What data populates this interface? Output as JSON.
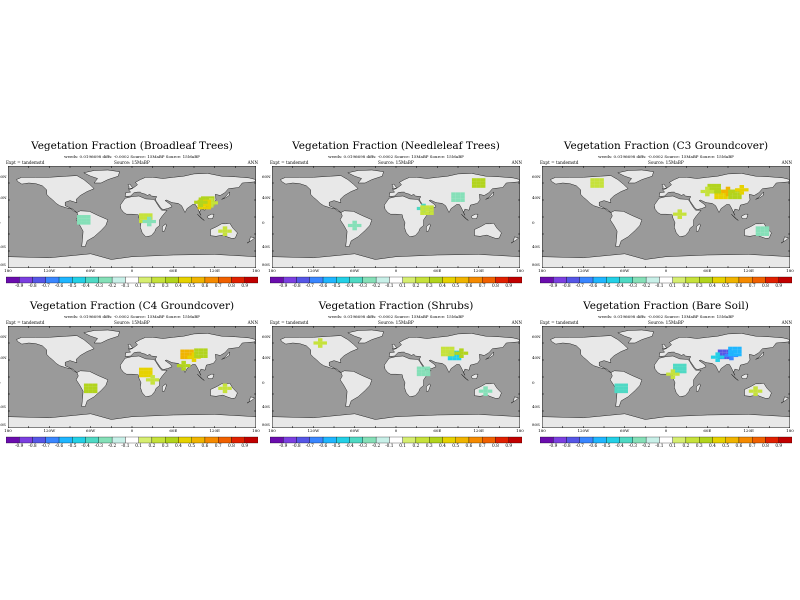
{
  "common": {
    "stats_line": "weeds: 0.0196698  diffs: -0.0002    Source:  15MaBP    Source:  15MaBP",
    "expt_label": "Expt = tandemstd",
    "source_label": "Source:  15MaBP",
    "period": "ANN",
    "lon_ticks": [
      "180",
      "120W",
      "60W",
      "0",
      "60E",
      "120E",
      "180"
    ],
    "lat_ticks": [
      "60N",
      "40N",
      "0",
      "40S",
      "80S"
    ],
    "colorbar_levels": [
      "-0.9",
      "-0.8",
      "-0.7",
      "-0.6",
      "-0.5",
      "-0.4",
      "-0.3",
      "-0.2",
      "-0.1",
      "0.1",
      "0.2",
      "0.3",
      "0.4",
      "0.5",
      "0.6",
      "0.7",
      "0.8",
      "0.9"
    ],
    "colors": {
      "ocean": "#9a9a9a",
      "land": "#e8e8e8",
      "palette": [
        "#6a0dad",
        "#7b3fe0",
        "#5656e6",
        "#3a86ff",
        "#1fb6ff",
        "#23d0e6",
        "#4fd9c4",
        "#85e0b8",
        "#c8f0e8",
        "#ffffff",
        "#d6ee70",
        "#c6e23b",
        "#b2d41d",
        "#e6d200",
        "#f0b400",
        "#f58a00",
        "#f06000",
        "#e02000",
        "#c00000"
      ]
    }
  },
  "panels": [
    {
      "id": "broadleaf",
      "title": "Vegetation Fraction (Broadleaf Trees)"
    },
    {
      "id": "needleleaf",
      "title": "Vegetation Fraction (Needleleaf Trees)"
    },
    {
      "id": "c3",
      "title": "Vegetation Fraction (C3 Groundcover)"
    },
    {
      "id": "c4",
      "title": "Vegetation Fraction (C4 Groundcover)"
    },
    {
      "id": "shrubs",
      "title": "Vegetation Fraction (Shrubs)"
    },
    {
      "id": "baresoil",
      "title": "Vegetation Fraction (Bare Soil)"
    }
  ],
  "chart_data": [
    {
      "type": "heatmap",
      "title": "Vegetation Fraction (Broadleaf Trees)",
      "projection": "cylindrical",
      "xlim": [
        -180,
        180
      ],
      "ylim": [
        -90,
        90
      ],
      "color_range": [
        -0.9,
        0.9
      ],
      "cells": [
        {
          "lon": 110,
          "lat": 28,
          "v": 0.3
        },
        {
          "lon": 115,
          "lat": 25,
          "v": 0.2
        },
        {
          "lon": 105,
          "lat": 22,
          "v": 0.4
        },
        {
          "lon": 100,
          "lat": 26,
          "v": 0.3
        },
        {
          "lon": 20,
          "lat": -2,
          "v": 0.2
        },
        {
          "lon": 25,
          "lat": -8,
          "v": -0.2
        },
        {
          "lon": -70,
          "lat": -5,
          "v": -0.2
        },
        {
          "lon": 135,
          "lat": -25,
          "v": 0.2
        }
      ]
    },
    {
      "type": "heatmap",
      "title": "Vegetation Fraction (Needleleaf Trees)",
      "projection": "cylindrical",
      "xlim": [
        -180,
        180
      ],
      "ylim": [
        -90,
        90
      ],
      "color_range": [
        -0.9,
        0.9
      ],
      "cells": [
        {
          "lon": 90,
          "lat": 35,
          "v": -0.2
        },
        {
          "lon": 40,
          "lat": 15,
          "v": -0.3
        },
        {
          "lon": 45,
          "lat": 12,
          "v": 0.2
        },
        {
          "lon": -60,
          "lat": -15,
          "v": -0.2
        },
        {
          "lon": 120,
          "lat": 60,
          "v": 0.3
        }
      ]
    },
    {
      "type": "heatmap",
      "title": "Vegetation Fraction (C3 Groundcover)",
      "projection": "cylindrical",
      "xlim": [
        -180,
        180
      ],
      "ylim": [
        -90,
        90
      ],
      "color_range": [
        -0.9,
        0.9
      ],
      "cells": [
        {
          "lon": 80,
          "lat": 40,
          "v": 0.4
        },
        {
          "lon": 90,
          "lat": 45,
          "v": 0.5
        },
        {
          "lon": 100,
          "lat": 40,
          "v": 0.3
        },
        {
          "lon": 110,
          "lat": 48,
          "v": 0.4
        },
        {
          "lon": 70,
          "lat": 50,
          "v": 0.3
        },
        {
          "lon": 60,
          "lat": 45,
          "v": 0.2
        },
        {
          "lon": -100,
          "lat": 60,
          "v": 0.2
        },
        {
          "lon": 20,
          "lat": 5,
          "v": 0.2
        },
        {
          "lon": 140,
          "lat": -25,
          "v": -0.2
        }
      ]
    },
    {
      "type": "heatmap",
      "title": "Vegetation Fraction (C4 Groundcover)",
      "projection": "cylindrical",
      "xlim": [
        -180,
        180
      ],
      "ylim": [
        -90,
        90
      ],
      "color_range": [
        -0.9,
        0.9
      ],
      "cells": [
        {
          "lon": 80,
          "lat": 40,
          "v": 0.5
        },
        {
          "lon": 90,
          "lat": 35,
          "v": 0.4
        },
        {
          "lon": 100,
          "lat": 42,
          "v": 0.3
        },
        {
          "lon": 75,
          "lat": 20,
          "v": 0.3
        },
        {
          "lon": 20,
          "lat": 8,
          "v": 0.4
        },
        {
          "lon": 30,
          "lat": -5,
          "v": 0.2
        },
        {
          "lon": -60,
          "lat": -20,
          "v": 0.3
        },
        {
          "lon": 135,
          "lat": -20,
          "v": 0.2
        }
      ]
    },
    {
      "type": "heatmap",
      "title": "Vegetation Fraction (Shrubs)",
      "projection": "cylindrical",
      "xlim": [
        -180,
        180
      ],
      "ylim": [
        -90,
        90
      ],
      "color_range": [
        -0.9,
        0.9
      ],
      "cells": [
        {
          "lon": 85,
          "lat": 38,
          "v": -0.4
        },
        {
          "lon": 95,
          "lat": 42,
          "v": 0.3
        },
        {
          "lon": 75,
          "lat": 45,
          "v": 0.2
        },
        {
          "lon": -110,
          "lat": 60,
          "v": 0.2
        },
        {
          "lon": 40,
          "lat": 10,
          "v": -0.2
        },
        {
          "lon": 130,
          "lat": -25,
          "v": -0.2
        }
      ]
    },
    {
      "type": "heatmap",
      "title": "Vegetation Fraction (Bare Soil)",
      "projection": "cylindrical",
      "xlim": [
        -180,
        180
      ],
      "ylim": [
        -90,
        90
      ],
      "color_range": [
        -0.9,
        0.9
      ],
      "cells": [
        {
          "lon": 85,
          "lat": 40,
          "v": -0.7
        },
        {
          "lon": 95,
          "lat": 38,
          "v": -0.6
        },
        {
          "lon": 100,
          "lat": 45,
          "v": -0.5
        },
        {
          "lon": 75,
          "lat": 35,
          "v": -0.4
        },
        {
          "lon": 20,
          "lat": 15,
          "v": -0.3
        },
        {
          "lon": 10,
          "lat": 5,
          "v": 0.2
        },
        {
          "lon": -65,
          "lat": -20,
          "v": -0.3
        },
        {
          "lon": 130,
          "lat": -25,
          "v": 0.2
        }
      ]
    }
  ]
}
